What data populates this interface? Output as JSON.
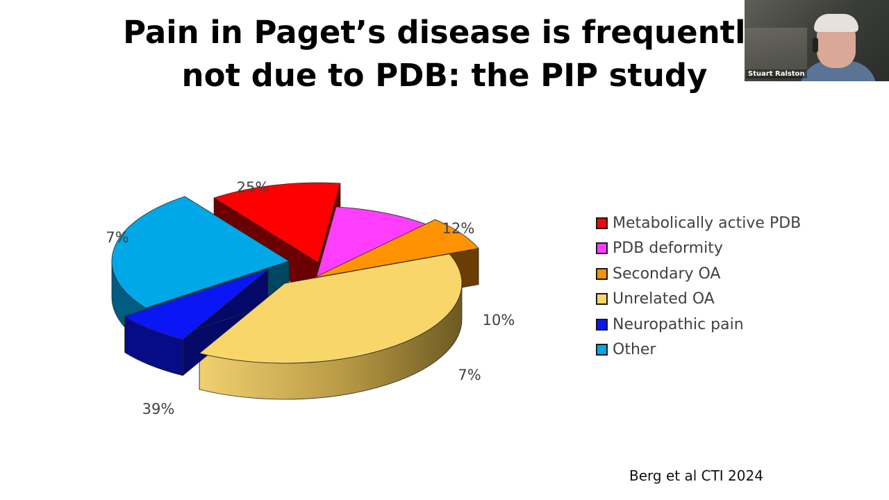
{
  "slide": {
    "title_line1": "Pain in Paget’s disease is frequently",
    "title_line2": "not due to PDB: the PIP study",
    "citation": "Berg et al CTI 2024"
  },
  "webcam": {
    "name": "Stuart Ralston"
  },
  "chart_data": {
    "type": "pie",
    "title": "",
    "style": "3d-exploded",
    "legend_placement": "right",
    "slices": [
      {
        "label": "Metabolically active PDB",
        "value": 12,
        "display": "12%",
        "color": "#ff0000"
      },
      {
        "label": "PDB deformity",
        "value": 10,
        "display": "10%",
        "color": "#ff3dff"
      },
      {
        "label": "Secondary OA",
        "value": 7,
        "display": "7%",
        "color": "#ff9200"
      },
      {
        "label": "Unrelated OA",
        "value": 39,
        "display": "39%",
        "color": "#f8d66a"
      },
      {
        "label": "Neuropathic pain",
        "value": 7,
        "display": "7%",
        "color": "#0a16f5"
      },
      {
        "label": "Other",
        "value": 25,
        "display": "25%",
        "color": "#00a8e8"
      }
    ]
  }
}
